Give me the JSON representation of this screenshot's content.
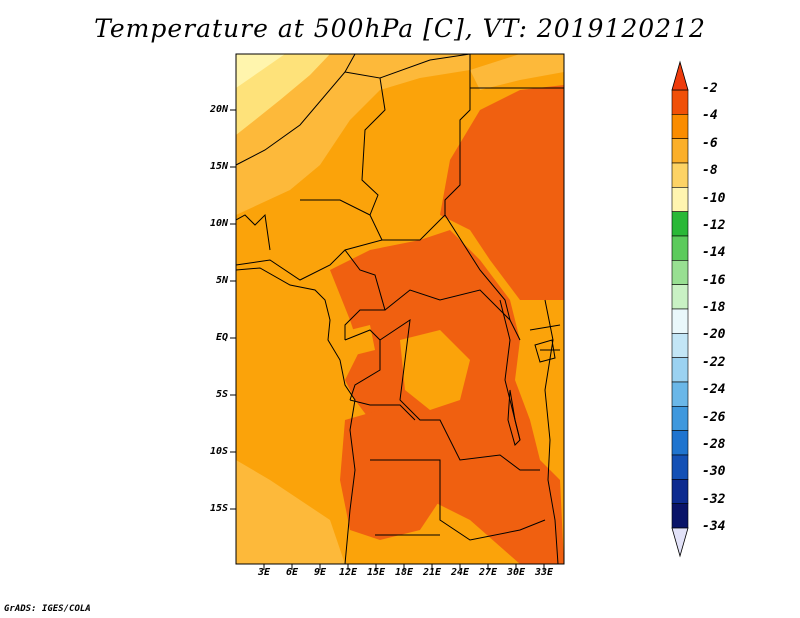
{
  "title": "Temperature at 500hPa [C], VT: 2019120212",
  "credit": "GrADS: IGES/COLA",
  "map": {
    "variable": "Temperature at 500hPa",
    "units": "C",
    "valid_time": "2019120212",
    "lon_range": [
      0,
      35
    ],
    "lat_range": [
      -20,
      24
    ],
    "lat_ticks": [
      "20N",
      "15N",
      "10N",
      "5N",
      "EQ",
      "5S",
      "10S",
      "15S"
    ],
    "lon_ticks": [
      "3E",
      "6E",
      "9E",
      "12E",
      "15E",
      "18E",
      "21E",
      "24E",
      "27E",
      "30E",
      "33E"
    ],
    "shading_colors": {
      "-2_to_-4": "#f06010",
      "-4_to_-6": "#fba30a",
      "-6_to_-8": "#fdb93a",
      "-8_to_-10": "#fee27a",
      "-10_to_-12": "#fff5ad"
    }
  },
  "colorbar": {
    "labels": [
      "-2",
      "-4",
      "-6",
      "-8",
      "-10",
      "-12",
      "-14",
      "-16",
      "-18",
      "-20",
      "-22",
      "-24",
      "-26",
      "-28",
      "-30",
      "-32",
      "-34"
    ],
    "colors": [
      "#f05008",
      "#fa8c00",
      "#fbaf2a",
      "#fdd365",
      "#fff5b0",
      "#2ab837",
      "#5ccb5c",
      "#98df92",
      "#c9f1c4",
      "#eaf8fb",
      "#c3e6f6",
      "#9bd2f1",
      "#6ab7e8",
      "#3f98dd",
      "#1f74cf",
      "#1350b5",
      "#0d2b8f",
      "#0a1468"
    ],
    "top_triangle_color": "#ee3b0c",
    "bottom_triangle_color": "#e2e2f8"
  }
}
